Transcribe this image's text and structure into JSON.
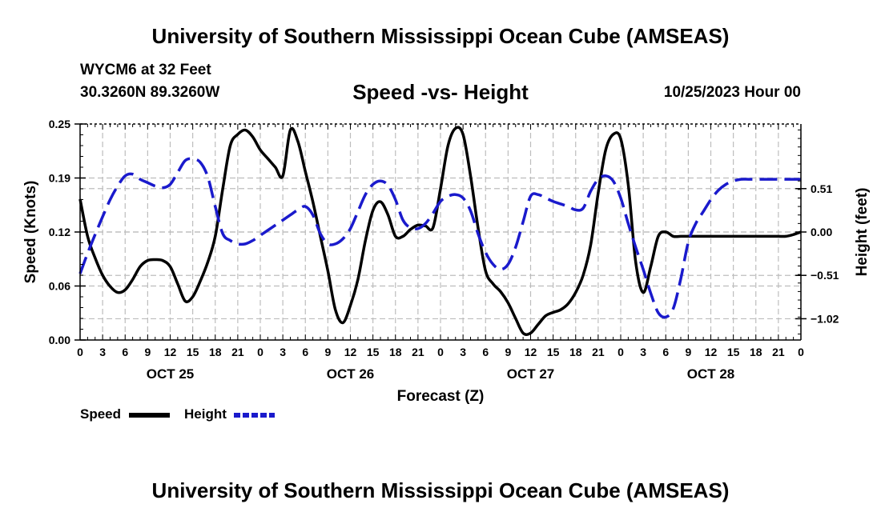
{
  "header": {
    "title": "University of Southern Mississippi Ocean Cube (AMSEAS)",
    "station": "WYCM6 at 32 Feet",
    "coords": "30.3260N  89.3260W",
    "subtitle": "Speed -vs- Height",
    "datetime": "10/25/2023 Hour 00"
  },
  "footer": {
    "title": "University of Southern Mississippi Ocean Cube (AMSEAS)"
  },
  "legend": {
    "speed": "Speed",
    "height": "Height"
  },
  "colors": {
    "speed": "#000000",
    "height": "#1a1acc",
    "grid": "#bdbdbd"
  },
  "chart_data": {
    "type": "line",
    "xlabel": "Forecast (Z)",
    "ylabel_left": "Speed (Knots)",
    "ylabel_right": "Height (feet)",
    "x_range": [
      0,
      96
    ],
    "x_major_step": 3,
    "x_tick_labels": [
      "0",
      "3",
      "6",
      "9",
      "12",
      "15",
      "18",
      "21",
      "0",
      "3",
      "6",
      "9",
      "12",
      "15",
      "18",
      "21",
      "0",
      "3",
      "6",
      "9",
      "12",
      "15",
      "18",
      "21",
      "0",
      "3",
      "6",
      "9",
      "12",
      "15",
      "18",
      "21",
      "0"
    ],
    "date_labels": [
      {
        "x": 12,
        "label": "OCT 25"
      },
      {
        "x": 36,
        "label": "OCT 26"
      },
      {
        "x": 60,
        "label": "OCT 27"
      },
      {
        "x": 84,
        "label": "OCT 28"
      }
    ],
    "ylim_left": [
      0,
      0.25
    ],
    "yticks_left": [
      {
        "value": 0.0,
        "label": "0.00"
      },
      {
        "value": 0.0625,
        "label": "0.06"
      },
      {
        "value": 0.125,
        "label": "0.12"
      },
      {
        "value": 0.1875,
        "label": "0.19"
      },
      {
        "value": 0.25,
        "label": "0.25"
      }
    ],
    "ylim_right": [
      -1.27,
      1.27
    ],
    "yticks_right": [
      {
        "value": -1.02,
        "label": "−1.02"
      },
      {
        "value": -0.51,
        "label": "−0.51"
      },
      {
        "value": 0.0,
        "label": "0.00"
      },
      {
        "value": 0.51,
        "label": "0.51"
      }
    ],
    "series": [
      {
        "name": "Speed",
        "axis": "left",
        "style": "solid",
        "x": [
          0,
          1,
          2,
          3,
          4,
          5,
          6,
          7,
          8,
          9,
          10,
          11,
          12,
          13,
          14,
          15,
          16,
          17,
          18,
          19,
          20,
          21,
          22,
          23,
          24,
          25,
          26,
          27,
          28,
          29,
          30,
          31,
          32,
          33,
          34,
          35,
          36,
          37,
          38,
          39,
          40,
          41,
          42,
          43,
          44,
          45,
          46,
          47,
          48,
          49,
          50,
          51,
          52,
          53,
          54,
          55,
          56,
          57,
          58,
          59,
          60,
          61,
          62,
          63,
          64,
          65,
          66,
          67,
          68,
          69,
          70,
          71,
          72,
          73,
          74,
          75,
          76,
          77,
          78,
          79,
          80,
          81,
          82,
          83,
          84,
          85,
          86,
          87,
          88,
          89,
          90,
          91,
          92,
          93,
          94,
          95,
          96
        ],
        "values": [
          0.163,
          0.12,
          0.095,
          0.075,
          0.062,
          0.055,
          0.058,
          0.07,
          0.085,
          0.092,
          0.093,
          0.092,
          0.085,
          0.065,
          0.045,
          0.05,
          0.068,
          0.09,
          0.12,
          0.175,
          0.225,
          0.238,
          0.243,
          0.235,
          0.22,
          0.21,
          0.2,
          0.19,
          0.243,
          0.23,
          0.195,
          0.16,
          0.12,
          0.08,
          0.035,
          0.02,
          0.04,
          0.07,
          0.115,
          0.15,
          0.16,
          0.145,
          0.12,
          0.12,
          0.128,
          0.133,
          0.132,
          0.13,
          0.175,
          0.225,
          0.245,
          0.238,
          0.19,
          0.13,
          0.08,
          0.065,
          0.056,
          0.043,
          0.025,
          0.008,
          0.008,
          0.018,
          0.028,
          0.032,
          0.035,
          0.042,
          0.055,
          0.075,
          0.11,
          0.17,
          0.22,
          0.238,
          0.233,
          0.18,
          0.09,
          0.055,
          0.085,
          0.12,
          0.125,
          0.12,
          0.12,
          0.12,
          0.12,
          0.12,
          0.12,
          0.12,
          0.12,
          0.12,
          0.12,
          0.12,
          0.12,
          0.12,
          0.12,
          0.12,
          0.12,
          0.122,
          0.125
        ]
      },
      {
        "name": "Height",
        "axis": "right",
        "style": "dashed",
        "x": [
          0,
          1,
          2,
          3,
          4,
          5,
          6,
          7,
          8,
          9,
          10,
          11,
          12,
          13,
          14,
          15,
          16,
          17,
          18,
          19,
          20,
          21,
          22,
          23,
          24,
          25,
          26,
          27,
          28,
          29,
          30,
          31,
          32,
          33,
          34,
          35,
          36,
          37,
          38,
          39,
          40,
          41,
          42,
          43,
          44,
          45,
          46,
          47,
          48,
          49,
          50,
          51,
          52,
          53,
          54,
          55,
          56,
          57,
          58,
          59,
          60,
          61,
          62,
          63,
          64,
          65,
          66,
          67,
          68,
          69,
          70,
          71,
          72,
          73,
          74,
          75,
          76,
          77,
          78,
          79,
          80,
          81,
          82,
          83,
          84,
          85,
          86,
          87,
          88,
          89,
          90,
          91,
          92,
          93,
          94,
          95,
          96
        ],
        "values": [
          -0.49,
          -0.25,
          -0.03,
          0.18,
          0.38,
          0.54,
          0.66,
          0.68,
          0.62,
          0.58,
          0.54,
          0.52,
          0.56,
          0.7,
          0.84,
          0.86,
          0.82,
          0.65,
          0.3,
          -0.02,
          -0.1,
          -0.14,
          -0.14,
          -0.1,
          -0.04,
          0.02,
          0.08,
          0.14,
          0.2,
          0.26,
          0.3,
          0.2,
          -0.02,
          -0.14,
          -0.14,
          -0.08,
          0.04,
          0.24,
          0.44,
          0.56,
          0.6,
          0.55,
          0.38,
          0.14,
          0.05,
          0.04,
          0.1,
          0.22,
          0.36,
          0.42,
          0.44,
          0.4,
          0.25,
          -0.02,
          -0.24,
          -0.38,
          -0.44,
          -0.38,
          -0.18,
          0.12,
          0.42,
          0.44,
          0.4,
          0.36,
          0.33,
          0.3,
          0.26,
          0.28,
          0.48,
          0.62,
          0.66,
          0.6,
          0.4,
          0.1,
          -0.18,
          -0.44,
          -0.72,
          -0.95,
          -1.0,
          -0.9,
          -0.55,
          -0.12,
          0.1,
          0.24,
          0.38,
          0.49,
          0.56,
          0.6,
          0.62,
          0.62,
          0.62,
          0.62,
          0.62,
          0.62,
          0.62,
          0.62,
          0.62
        ]
      }
    ]
  }
}
